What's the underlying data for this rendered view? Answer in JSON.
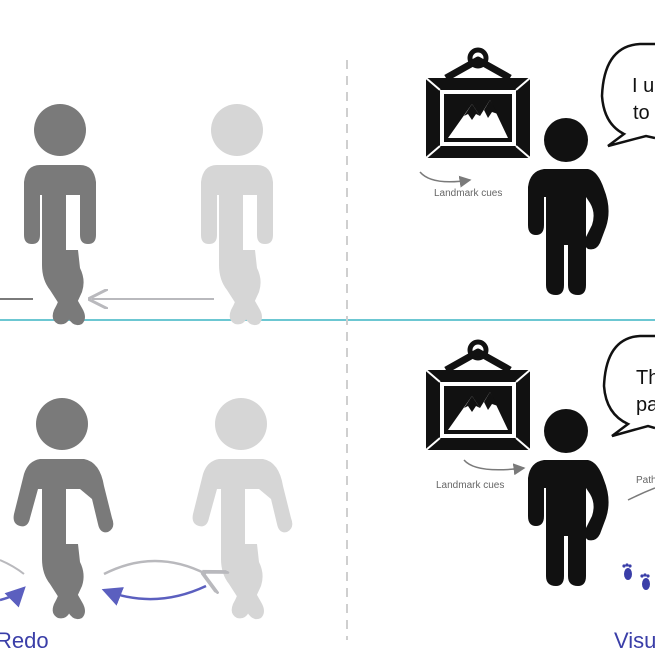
{
  "top_right": {
    "landmark_label": "Landmark cues",
    "speech_line1": "I u",
    "speech_line2": "to"
  },
  "bottom_right": {
    "landmark_label": "Landmark cues",
    "path_label": "Path",
    "speech_line1": "Th",
    "speech_line2": "pa"
  },
  "bottom_left": {
    "caption": "Redo"
  },
  "bottom_right_caption": "Visu",
  "colors": {
    "divider_horizontal": "#6cc7d2",
    "divider_vertical": "#cfcfcf",
    "figure_dark": "#7a7a7a",
    "figure_light": "#d6d6d6",
    "figure_black": "#111111",
    "arrow_gray": "#b9b9bd",
    "arrow_blue": "#5b5fbf",
    "caption_blue": "#3a3ea8"
  },
  "icons": [
    "landmark-picture-icon",
    "footprints-icon",
    "speech-bubble-icon"
  ]
}
